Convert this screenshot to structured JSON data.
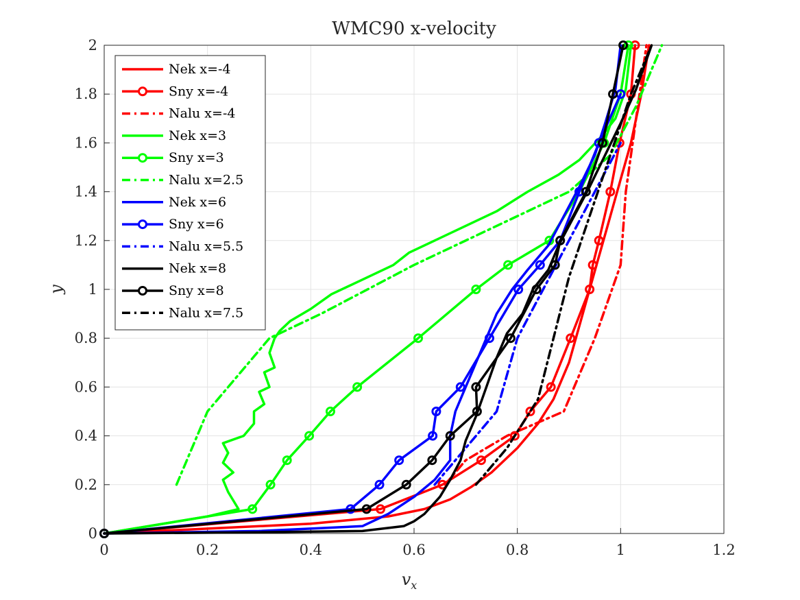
{
  "chart_data": {
    "type": "line",
    "title": "WMC90 x-velocity",
    "xlabel": "v",
    "xlabel_sub": "x",
    "ylabel": "y",
    "xlim": [
      0,
      1.2
    ],
    "ylim": [
      0,
      2
    ],
    "xticks": [
      0,
      0.2,
      0.4,
      0.6,
      0.8,
      1,
      1.2
    ],
    "xtick_labels": [
      "0",
      "0.2",
      "0.4",
      "0.6",
      "0.8",
      "1",
      "1.2"
    ],
    "yticks": [
      0,
      0.2,
      0.4,
      0.6,
      0.8,
      1,
      1.2,
      1.4,
      1.6,
      1.8,
      2
    ],
    "ytick_labels": [
      "0",
      "0.2",
      "0.4",
      "0.6",
      "0.8",
      "1",
      "1.2",
      "1.4",
      "1.6",
      "1.8",
      "2"
    ],
    "grid": true,
    "legend_position": "top-left",
    "series": [
      {
        "name": "Nek x=-4",
        "color": "#ff0000",
        "style": "solid",
        "marker": false,
        "x": [
          0,
          0.2,
          0.4,
          0.55,
          0.62,
          0.67,
          0.71,
          0.75,
          0.8,
          0.84,
          0.87,
          0.9,
          0.92,
          0.94,
          0.96,
          0.98,
          1.0,
          1.02,
          1.04,
          1.055
        ],
        "y": [
          0,
          0.02,
          0.04,
          0.07,
          0.1,
          0.14,
          0.19,
          0.25,
          0.35,
          0.45,
          0.55,
          0.7,
          0.85,
          1.0,
          1.15,
          1.3,
          1.45,
          1.6,
          1.8,
          2.0
        ]
      },
      {
        "name": "Sny x=-4",
        "color": "#ff0000",
        "style": "solid",
        "marker": true,
        "x": [
          0,
          0.535,
          0.655,
          0.73,
          0.795,
          0.825,
          0.865,
          0.903,
          0.94,
          0.946,
          0.958,
          0.98,
          0.998,
          1.02,
          1.028
        ],
        "y": [
          0,
          0.1,
          0.2,
          0.3,
          0.4,
          0.5,
          0.6,
          0.8,
          1.0,
          1.1,
          1.2,
          1.4,
          1.6,
          1.8,
          2.0
        ]
      },
      {
        "name": "Nalu x=-4",
        "color": "#ff0000",
        "style": "dashdot",
        "marker": false,
        "x": [
          0.66,
          0.7,
          0.78,
          0.89,
          0.95,
          1.0,
          1.01,
          1.03,
          1.05
        ],
        "y": [
          0.2,
          0.3,
          0.4,
          0.5,
          0.8,
          1.1,
          1.4,
          1.7,
          2.0
        ]
      },
      {
        "name": "Nek x=3",
        "color": "#00ff00",
        "style": "solid",
        "marker": false,
        "x": [
          0,
          0.2,
          0.26,
          0.24,
          0.23,
          0.25,
          0.23,
          0.24,
          0.23,
          0.27,
          0.29,
          0.29,
          0.31,
          0.3,
          0.32,
          0.31,
          0.33,
          0.32,
          0.33,
          0.34,
          0.36,
          0.4,
          0.44,
          0.5,
          0.56,
          0.59,
          0.64,
          0.7,
          0.76,
          0.82,
          0.88,
          0.92,
          0.96,
          0.99,
          1.01,
          1.02
        ],
        "y": [
          0,
          0.07,
          0.1,
          0.17,
          0.22,
          0.25,
          0.29,
          0.33,
          0.37,
          0.4,
          0.45,
          0.5,
          0.53,
          0.58,
          0.6,
          0.66,
          0.68,
          0.74,
          0.8,
          0.83,
          0.87,
          0.92,
          0.98,
          1.04,
          1.1,
          1.15,
          1.2,
          1.26,
          1.32,
          1.4,
          1.47,
          1.53,
          1.62,
          1.7,
          1.82,
          2.0
        ]
      },
      {
        "name": "Sny x=3",
        "color": "#00ff00",
        "style": "solid",
        "marker": true,
        "x": [
          0,
          0.287,
          0.322,
          0.354,
          0.397,
          0.438,
          0.49,
          0.608,
          0.72,
          0.782,
          0.862,
          0.92,
          0.968,
          1.0,
          1.015
        ],
        "y": [
          0,
          0.1,
          0.2,
          0.3,
          0.4,
          0.5,
          0.6,
          0.8,
          1.0,
          1.1,
          1.2,
          1.4,
          1.6,
          1.8,
          2.0
        ]
      },
      {
        "name": "Nalu x=2.5",
        "color": "#00ff00",
        "style": "dashdot",
        "marker": false,
        "x": [
          0.14,
          0.2,
          0.32,
          0.42,
          0.6,
          0.75,
          0.9,
          0.98,
          1.03,
          1.08
        ],
        "y": [
          0.2,
          0.5,
          0.8,
          0.9,
          1.1,
          1.25,
          1.4,
          1.55,
          1.75,
          2.0
        ]
      },
      {
        "name": "Nek x=6",
        "color": "#0000ff",
        "style": "solid",
        "marker": false,
        "x": [
          0,
          0.3,
          0.5,
          0.55,
          0.6,
          0.64,
          0.67,
          0.67,
          0.68,
          0.7,
          0.72,
          0.74,
          0.76,
          0.79,
          0.82,
          0.86,
          0.89,
          0.92,
          0.95,
          0.97,
          0.99,
          1.0
        ],
        "y": [
          0,
          0.01,
          0.03,
          0.08,
          0.15,
          0.22,
          0.3,
          0.4,
          0.5,
          0.6,
          0.7,
          0.8,
          0.9,
          1.0,
          1.08,
          1.18,
          1.3,
          1.42,
          1.55,
          1.68,
          1.82,
          2.0
        ]
      },
      {
        "name": "Sny x=6",
        "color": "#0000ff",
        "style": "solid",
        "marker": true,
        "x": [
          0,
          0.477,
          0.533,
          0.571,
          0.636,
          0.643,
          0.69,
          0.746,
          0.802,
          0.844,
          0.883,
          0.92,
          0.958,
          1.0
        ],
        "y": [
          0,
          0.1,
          0.2,
          0.3,
          0.4,
          0.5,
          0.6,
          0.8,
          1.0,
          1.1,
          1.2,
          1.4,
          1.6,
          1.8
        ]
      },
      {
        "name": "Nalu x=5.5",
        "color": "#0000ff",
        "style": "dashdot",
        "marker": false,
        "x": [
          0.64,
          0.68,
          0.72,
          0.76,
          0.8,
          0.85,
          0.9,
          0.95,
          1.0
        ],
        "y": [
          0.2,
          0.3,
          0.4,
          0.5,
          0.8,
          1.0,
          1.2,
          1.4,
          1.6
        ]
      },
      {
        "name": "Nek x=8",
        "color": "#000000",
        "style": "solid",
        "marker": false,
        "x": [
          0,
          0.3,
          0.5,
          0.58,
          0.6,
          0.62,
          0.65,
          0.67,
          0.69,
          0.7,
          0.72,
          0.74,
          0.76,
          0.78,
          0.81,
          0.83,
          0.86,
          0.88,
          0.91,
          0.94,
          0.97,
          1.0,
          1.03,
          1.06
        ],
        "y": [
          0,
          0.005,
          0.01,
          0.03,
          0.05,
          0.08,
          0.15,
          0.22,
          0.3,
          0.38,
          0.48,
          0.6,
          0.72,
          0.82,
          0.9,
          1.0,
          1.08,
          1.18,
          1.3,
          1.42,
          1.55,
          1.68,
          1.82,
          2.0
        ]
      },
      {
        "name": "Sny x=8",
        "color": "#000000",
        "style": "solid",
        "marker": true,
        "x": [
          0,
          0.508,
          0.585,
          0.635,
          0.67,
          0.722,
          0.72,
          0.787,
          0.837,
          0.873,
          0.883,
          0.933,
          0.965,
          0.985,
          1.005
        ],
        "y": [
          0,
          0.1,
          0.2,
          0.3,
          0.4,
          0.5,
          0.6,
          0.8,
          1.0,
          1.1,
          1.2,
          1.4,
          1.6,
          1.8,
          2.0
        ]
      },
      {
        "name": "Nalu x=7.5",
        "color": "#000000",
        "style": "dashdot",
        "marker": false,
        "x": [
          0.72,
          0.78,
          0.84,
          0.87,
          0.9,
          0.94,
          0.98,
          1.02,
          1.06
        ],
        "y": [
          0.2,
          0.35,
          0.55,
          0.8,
          1.05,
          1.3,
          1.55,
          1.8,
          2.0
        ]
      }
    ]
  }
}
